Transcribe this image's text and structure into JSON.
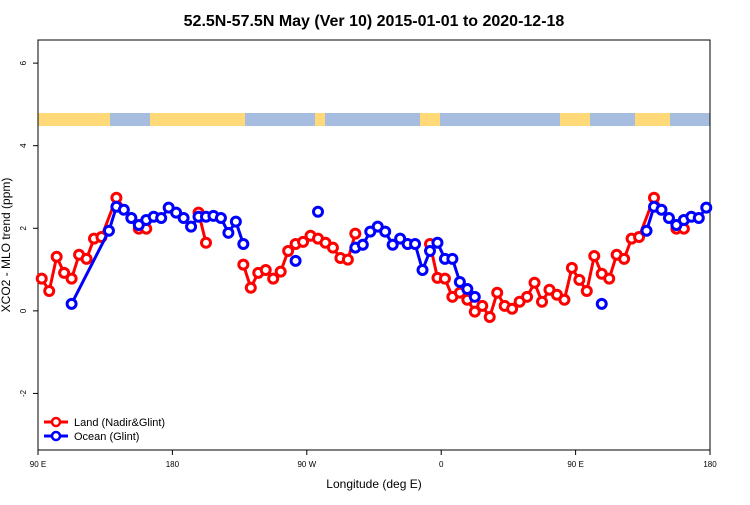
{
  "chart_data": {
    "type": "line",
    "title": "52.5N-57.5N May (Ver 10)   2015-01-01 to 2020-12-18",
    "x_label": "Longitude (deg E)",
    "y_label": "XCO2 - MLO trend (ppm)",
    "xlim": [
      90,
      540
    ],
    "ylim": [
      -3.37,
      6.56
    ],
    "xticks": [
      {
        "value": 90,
        "label": "90 E"
      },
      180,
      {
        "value": 270,
        "label": "90 W"
      },
      {
        "value": 360,
        "label": "0"
      },
      {
        "value": 450,
        "label": "90 E"
      },
      {
        "value": 540,
        "label": "180"
      }
    ],
    "yticks": [
      -2,
      0,
      2,
      4,
      6
    ],
    "legend": "bottom-left",
    "series": [
      {
        "name": "Land (Nadir&Glint)",
        "color": "#ff0000",
        "x": [
          92.5,
          97.5,
          102.5,
          107.5,
          112.5,
          117.5,
          122.5,
          127.5,
          132.5,
          142.5,
          157.5,
          162.5,
          null,
          197.5,
          202.5,
          null,
          227.5,
          232.5,
          237.5,
          242.5,
          247.5,
          252.5,
          257.5,
          262.5,
          267.5,
          272.5,
          277.5,
          282.5,
          287.5,
          292.5,
          297.5,
          302.5,
          null,
          352.5,
          357.5,
          362.5,
          367.5,
          372.5,
          377.5,
          382.5,
          387.5,
          392.5,
          397.5,
          402.5,
          407.5,
          412.5,
          417.5,
          422.5,
          427.5,
          432.5,
          437.5,
          442.5,
          447.5,
          452.5,
          457.5,
          462.5,
          467.5,
          472.5,
          477.5,
          482.5,
          487.5,
          492.5,
          502.5,
          517.5,
          522.5
        ],
        "values": [
          0.78,
          0.48,
          1.31,
          0.92,
          0.78,
          1.36,
          1.26,
          1.75,
          1.79,
          2.74,
          1.99,
          1.99,
          null,
          2.38,
          1.65,
          null,
          1.12,
          0.56,
          0.92,
          0.99,
          0.78,
          0.95,
          1.45,
          1.62,
          1.67,
          1.82,
          1.75,
          1.65,
          1.53,
          1.28,
          1.24,
          1.87,
          null,
          1.62,
          0.8,
          0.78,
          0.34,
          0.44,
          0.27,
          -0.02,
          0.12,
          -0.15,
          0.44,
          0.12,
          0.05,
          0.22,
          0.34,
          0.68,
          0.22,
          0.51,
          0.39,
          0.27,
          1.04,
          0.75,
          0.48,
          1.33,
          0.9,
          0.78,
          1.36,
          1.26,
          1.75,
          1.79,
          2.74,
          1.99,
          1.99
        ]
      },
      {
        "name": "Ocean (Glint)",
        "color": "#0000ff",
        "x": [
          112.5,
          137.5,
          142.5,
          147.5,
          152.5,
          157.5,
          162.5,
          167.5,
          172.5,
          177.5,
          182.5,
          187.5,
          192.5,
          197.5,
          202.5,
          207.5,
          212.5,
          217.5,
          222.5,
          227.5,
          null,
          262.5,
          null,
          277.5,
          null,
          302.5,
          307.5,
          312.5,
          317.5,
          322.5,
          327.5,
          332.5,
          337.5,
          342.5,
          347.5,
          352.5,
          357.5,
          362.5,
          367.5,
          372.5,
          377.5,
          382.5,
          null,
          467.5,
          null,
          497.5,
          502.5,
          507.5,
          512.5,
          517.5,
          522.5,
          527.5,
          532.5,
          537.5
        ],
        "values": [
          0.17,
          1.94,
          2.52,
          2.45,
          2.25,
          2.08,
          2.2,
          2.28,
          2.25,
          2.5,
          2.38,
          2.25,
          2.04,
          2.28,
          2.28,
          2.3,
          2.25,
          1.89,
          2.16,
          1.62,
          null,
          1.21,
          null,
          2.4,
          null,
          1.53,
          1.6,
          1.92,
          2.04,
          1.92,
          1.6,
          1.75,
          1.62,
          1.62,
          0.99,
          1.45,
          1.65,
          1.26,
          1.26,
          0.7,
          0.53,
          0.34,
          null,
          0.17,
          null,
          1.94,
          2.52,
          2.45,
          2.25,
          2.08,
          2.2,
          2.28,
          2.25,
          2.5
        ]
      }
    ]
  }
}
